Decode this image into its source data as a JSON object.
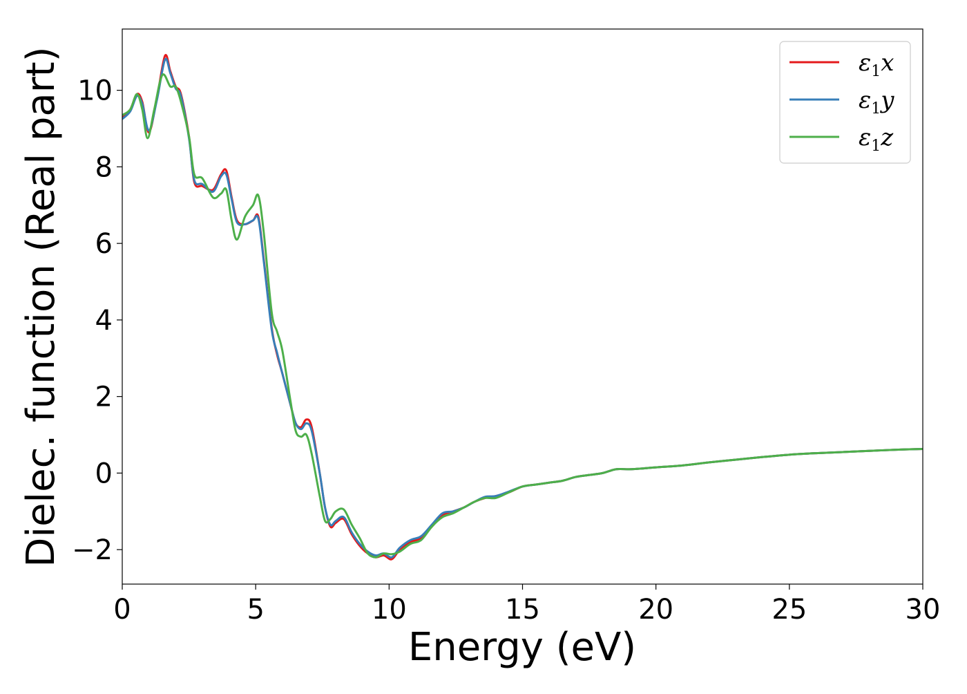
{
  "chart_data": {
    "type": "line",
    "title": "",
    "xlabel": "Energy (eV)",
    "ylabel": "Dielec. function (Real part)",
    "xlim": [
      0,
      30
    ],
    "ylim": [
      -2.9,
      11.6
    ],
    "xticks": [
      0,
      5,
      10,
      15,
      20,
      25,
      30
    ],
    "xtick_labels": [
      "0",
      "5",
      "10",
      "15",
      "20",
      "25",
      "30"
    ],
    "yticks": [
      -2,
      0,
      2,
      4,
      6,
      8,
      10
    ],
    "ytick_labels": [
      "−2",
      "0",
      "2",
      "4",
      "6",
      "8",
      "10"
    ],
    "grid": false,
    "legend_position": "top-right",
    "series": [
      {
        "name": "ε₁x",
        "legend_base": "ε",
        "legend_sub": "1",
        "legend_axis": "x",
        "color": "#e41a1c",
        "x": [
          0,
          0.3,
          0.55,
          0.75,
          1.0,
          1.3,
          1.6,
          1.8,
          2.0,
          2.2,
          2.5,
          2.7,
          3.0,
          3.4,
          3.7,
          3.9,
          4.1,
          4.3,
          4.6,
          4.9,
          5.1,
          5.3,
          5.6,
          5.8,
          6.0,
          6.3,
          6.5,
          6.7,
          6.9,
          7.1,
          7.4,
          7.6,
          7.8,
          8.0,
          8.3,
          8.6,
          8.9,
          9.2,
          9.5,
          9.8,
          10.1,
          10.4,
          10.8,
          11.2,
          11.6,
          12.0,
          12.4,
          12.8,
          13.2,
          13.6,
          14.0,
          14.5,
          15.0,
          15.5,
          16.0,
          16.5,
          17.0,
          17.5,
          18.0,
          18.5,
          19.0,
          19.5,
          20.0,
          21.0,
          22.0,
          23.0,
          24.0,
          25.0,
          26.0,
          27.0,
          28.0,
          29.0,
          30.0
        ],
        "y": [
          9.3,
          9.5,
          9.9,
          9.7,
          8.9,
          9.8,
          10.9,
          10.5,
          10.1,
          9.9,
          8.8,
          7.6,
          7.5,
          7.4,
          7.8,
          7.9,
          7.2,
          6.6,
          6.5,
          6.6,
          6.7,
          5.6,
          3.8,
          3.1,
          2.6,
          1.8,
          1.3,
          1.2,
          1.4,
          1.2,
          0.0,
          -0.9,
          -1.4,
          -1.3,
          -1.2,
          -1.6,
          -1.9,
          -2.1,
          -2.2,
          -2.15,
          -2.25,
          -2.0,
          -1.8,
          -1.7,
          -1.4,
          -1.1,
          -1.0,
          -0.9,
          -0.75,
          -0.65,
          -0.6,
          -0.5,
          -0.35,
          -0.3,
          -0.25,
          -0.2,
          -0.1,
          -0.05,
          0.0,
          0.1,
          0.1,
          0.12,
          0.15,
          0.2,
          0.28,
          0.35,
          0.42,
          0.48,
          0.52,
          0.55,
          0.58,
          0.61,
          0.63
        ]
      },
      {
        "name": "ε₁y",
        "legend_base": "ε",
        "legend_sub": "1",
        "legend_axis": "y",
        "color": "#377eb8",
        "x": [
          0,
          0.3,
          0.55,
          0.75,
          1.0,
          1.3,
          1.6,
          1.8,
          2.0,
          2.2,
          2.5,
          2.7,
          3.0,
          3.4,
          3.7,
          3.9,
          4.1,
          4.3,
          4.6,
          4.9,
          5.1,
          5.3,
          5.6,
          5.8,
          6.0,
          6.3,
          6.5,
          6.7,
          6.9,
          7.1,
          7.4,
          7.6,
          7.8,
          8.0,
          8.3,
          8.6,
          8.9,
          9.2,
          9.5,
          9.8,
          10.1,
          10.4,
          10.8,
          11.2,
          11.6,
          12.0,
          12.4,
          12.8,
          13.2,
          13.6,
          14.0,
          14.5,
          15.0,
          15.5,
          16.0,
          16.5,
          17.0,
          17.5,
          18.0,
          18.5,
          19.0,
          19.5,
          20.0,
          21.0,
          22.0,
          23.0,
          24.0,
          25.0,
          26.0,
          27.0,
          28.0,
          29.0,
          30.0
        ],
        "y": [
          9.25,
          9.45,
          9.85,
          9.65,
          8.95,
          9.75,
          10.8,
          10.45,
          10.05,
          9.85,
          8.75,
          7.65,
          7.55,
          7.35,
          7.75,
          7.8,
          7.15,
          6.55,
          6.5,
          6.6,
          6.65,
          5.55,
          3.75,
          3.15,
          2.6,
          1.8,
          1.3,
          1.15,
          1.3,
          1.1,
          0.0,
          -0.9,
          -1.35,
          -1.25,
          -1.15,
          -1.55,
          -1.85,
          -2.05,
          -2.15,
          -2.1,
          -2.2,
          -1.95,
          -1.75,
          -1.65,
          -1.35,
          -1.05,
          -1.0,
          -0.9,
          -0.75,
          -0.62,
          -0.6,
          -0.48,
          -0.35,
          -0.3,
          -0.25,
          -0.2,
          -0.1,
          -0.05,
          0.0,
          0.1,
          0.1,
          0.12,
          0.15,
          0.2,
          0.28,
          0.35,
          0.42,
          0.48,
          0.52,
          0.55,
          0.58,
          0.61,
          0.63
        ]
      },
      {
        "name": "ε₁z",
        "legend_base": "ε",
        "legend_sub": "1",
        "legend_axis": "z",
        "color": "#4daf4a",
        "x": [
          0,
          0.3,
          0.55,
          0.75,
          0.95,
          1.2,
          1.5,
          1.8,
          2.0,
          2.2,
          2.5,
          2.7,
          3.0,
          3.4,
          3.7,
          3.9,
          4.1,
          4.3,
          4.6,
          4.9,
          5.1,
          5.3,
          5.6,
          5.8,
          6.0,
          6.3,
          6.5,
          6.7,
          6.9,
          7.1,
          7.4,
          7.6,
          7.8,
          8.0,
          8.3,
          8.6,
          8.9,
          9.2,
          9.5,
          9.8,
          10.1,
          10.4,
          10.8,
          11.2,
          11.6,
          12.0,
          12.4,
          12.8,
          13.2,
          13.6,
          14.0,
          14.5,
          15.0,
          15.5,
          16.0,
          16.5,
          17.0,
          17.5,
          18.0,
          18.5,
          19.0,
          19.5,
          20.0,
          21.0,
          22.0,
          23.0,
          24.0,
          25.0,
          26.0,
          27.0,
          28.0,
          29.0,
          30.0
        ],
        "y": [
          9.35,
          9.5,
          9.9,
          9.5,
          8.75,
          9.5,
          10.4,
          10.1,
          10.1,
          9.7,
          8.8,
          7.8,
          7.7,
          7.2,
          7.3,
          7.4,
          6.6,
          6.1,
          6.7,
          7.0,
          7.25,
          6.3,
          4.2,
          3.7,
          3.2,
          1.9,
          1.1,
          0.95,
          1.0,
          0.5,
          -0.6,
          -1.25,
          -1.2,
          -1.0,
          -0.95,
          -1.35,
          -1.7,
          -2.1,
          -2.2,
          -2.1,
          -2.12,
          -2.05,
          -1.85,
          -1.75,
          -1.4,
          -1.15,
          -1.05,
          -0.9,
          -0.75,
          -0.65,
          -0.65,
          -0.5,
          -0.35,
          -0.3,
          -0.25,
          -0.2,
          -0.1,
          -0.05,
          0.0,
          0.1,
          0.1,
          0.12,
          0.15,
          0.2,
          0.28,
          0.35,
          0.42,
          0.48,
          0.52,
          0.55,
          0.58,
          0.61,
          0.63
        ]
      }
    ]
  }
}
